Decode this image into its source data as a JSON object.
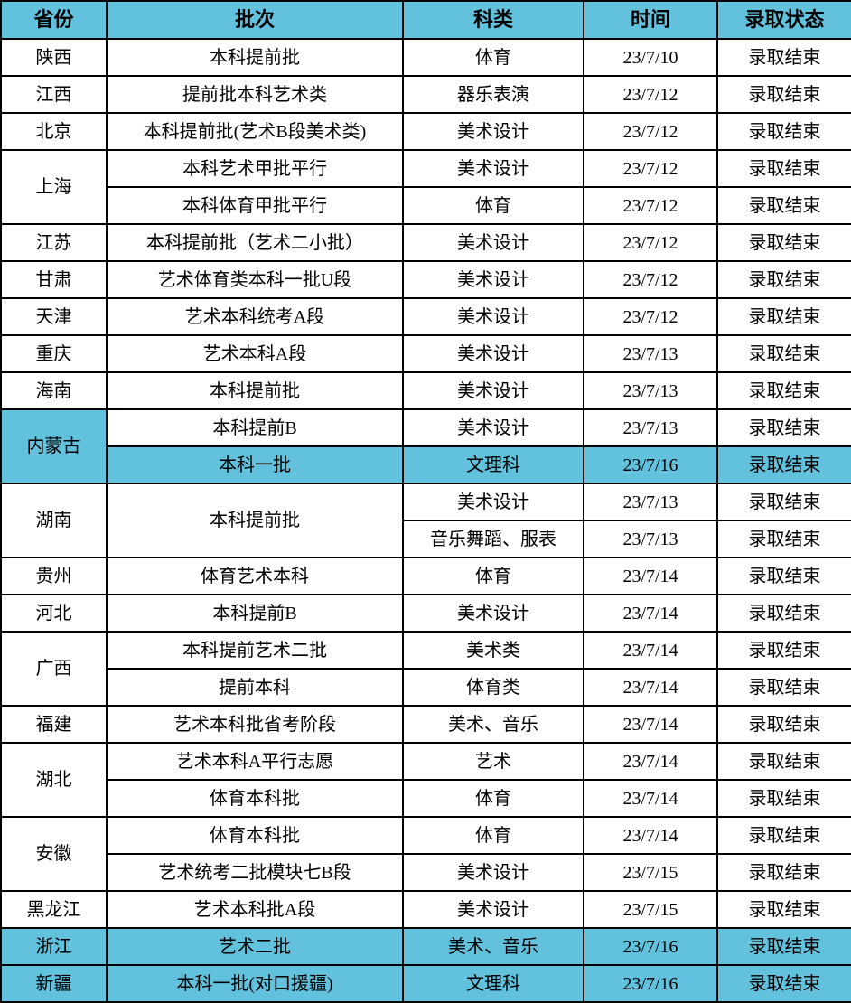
{
  "table": {
    "colors": {
      "header_bg": "#62c1dd",
      "highlight_bg": "#62c1dd",
      "border": "#000000",
      "text": "#000000",
      "row_bg": "#ffffff"
    },
    "columns": [
      {
        "key": "province",
        "label": "省份"
      },
      {
        "key": "batch",
        "label": "批次"
      },
      {
        "key": "category",
        "label": "科类"
      },
      {
        "key": "time",
        "label": "时间"
      },
      {
        "key": "status",
        "label": "录取状态"
      }
    ],
    "rows": [
      {
        "cells": [
          {
            "text": "陕西"
          },
          {
            "text": "本科提前批"
          },
          {
            "text": "体育"
          },
          {
            "text": "23/7/10"
          },
          {
            "text": "录取结束"
          }
        ]
      },
      {
        "cells": [
          {
            "text": "江西"
          },
          {
            "text": "提前批本科艺术类"
          },
          {
            "text": "器乐表演"
          },
          {
            "text": "23/7/12"
          },
          {
            "text": "录取结束"
          }
        ]
      },
      {
        "cells": [
          {
            "text": "北京"
          },
          {
            "text": "本科提前批(艺术B段美术类)"
          },
          {
            "text": "美术设计"
          },
          {
            "text": "23/7/12"
          },
          {
            "text": "录取结束"
          }
        ]
      },
      {
        "cells": [
          {
            "text": "上海",
            "rowspan": 2
          },
          {
            "text": "本科艺术甲批平行"
          },
          {
            "text": "美术设计"
          },
          {
            "text": "23/7/12"
          },
          {
            "text": "录取结束"
          }
        ]
      },
      {
        "cells": [
          {
            "text": "本科体育甲批平行"
          },
          {
            "text": "体育"
          },
          {
            "text": "23/7/12"
          },
          {
            "text": "录取结束"
          }
        ]
      },
      {
        "cells": [
          {
            "text": "江苏"
          },
          {
            "text": "本科提前批（艺术二小批）"
          },
          {
            "text": "美术设计"
          },
          {
            "text": "23/7/12"
          },
          {
            "text": "录取结束"
          }
        ]
      },
      {
        "cells": [
          {
            "text": "甘肃"
          },
          {
            "text": "艺术体育类本科一批U段"
          },
          {
            "text": "美术设计"
          },
          {
            "text": "23/7/12"
          },
          {
            "text": "录取结束"
          }
        ]
      },
      {
        "cells": [
          {
            "text": "天津"
          },
          {
            "text": "艺术本科统考A段"
          },
          {
            "text": "美术设计"
          },
          {
            "text": "23/7/12"
          },
          {
            "text": "录取结束"
          }
        ]
      },
      {
        "cells": [
          {
            "text": "重庆"
          },
          {
            "text": "艺术本科A段"
          },
          {
            "text": "美术设计"
          },
          {
            "text": "23/7/13"
          },
          {
            "text": "录取结束"
          }
        ]
      },
      {
        "cells": [
          {
            "text": "海南"
          },
          {
            "text": "本科提前批"
          },
          {
            "text": "美术设计"
          },
          {
            "text": "23/7/13"
          },
          {
            "text": "录取结束"
          }
        ]
      },
      {
        "cells": [
          {
            "text": "内蒙古",
            "rowspan": 2,
            "highlight": true
          },
          {
            "text": "本科提前B"
          },
          {
            "text": "美术设计"
          },
          {
            "text": "23/7/13"
          },
          {
            "text": "录取结束"
          }
        ]
      },
      {
        "highlight": true,
        "cells": [
          {
            "text": "本科一批"
          },
          {
            "text": "文理科"
          },
          {
            "text": "23/7/16"
          },
          {
            "text": "录取结束"
          }
        ]
      },
      {
        "cells": [
          {
            "text": "湖南",
            "rowspan": 2
          },
          {
            "text": "本科提前批",
            "rowspan": 2
          },
          {
            "text": "美术设计"
          },
          {
            "text": "23/7/13"
          },
          {
            "text": "录取结束"
          }
        ]
      },
      {
        "cells": [
          {
            "text": "音乐舞蹈、服表"
          },
          {
            "text": "23/7/13"
          },
          {
            "text": "录取结束"
          }
        ]
      },
      {
        "cells": [
          {
            "text": "贵州"
          },
          {
            "text": "体育艺术本科"
          },
          {
            "text": "体育"
          },
          {
            "text": "23/7/14"
          },
          {
            "text": "录取结束"
          }
        ]
      },
      {
        "cells": [
          {
            "text": "河北"
          },
          {
            "text": "本科提前B"
          },
          {
            "text": "美术设计"
          },
          {
            "text": "23/7/14"
          },
          {
            "text": "录取结束"
          }
        ]
      },
      {
        "cells": [
          {
            "text": "广西",
            "rowspan": 2
          },
          {
            "text": "本科提前艺术二批"
          },
          {
            "text": "美术类"
          },
          {
            "text": "23/7/14"
          },
          {
            "text": "录取结束"
          }
        ]
      },
      {
        "cells": [
          {
            "text": "提前本科"
          },
          {
            "text": "体育类"
          },
          {
            "text": "23/7/14"
          },
          {
            "text": "录取结束"
          }
        ]
      },
      {
        "cells": [
          {
            "text": "福建"
          },
          {
            "text": "艺术本科批省考阶段"
          },
          {
            "text": "美术、音乐"
          },
          {
            "text": "23/7/14"
          },
          {
            "text": "录取结束"
          }
        ]
      },
      {
        "cells": [
          {
            "text": "湖北",
            "rowspan": 2
          },
          {
            "text": "艺术本科A平行志愿"
          },
          {
            "text": "艺术"
          },
          {
            "text": "23/7/14"
          },
          {
            "text": "录取结束"
          }
        ]
      },
      {
        "cells": [
          {
            "text": "体育本科批"
          },
          {
            "text": "体育"
          },
          {
            "text": "23/7/14"
          },
          {
            "text": "录取结束"
          }
        ]
      },
      {
        "cells": [
          {
            "text": "安徽",
            "rowspan": 2
          },
          {
            "text": "体育本科批"
          },
          {
            "text": "体育"
          },
          {
            "text": "23/7/14"
          },
          {
            "text": "录取结束"
          }
        ]
      },
      {
        "cells": [
          {
            "text": "艺术统考二批模块七B段"
          },
          {
            "text": "美术设计"
          },
          {
            "text": "23/7/15"
          },
          {
            "text": "录取结束"
          }
        ]
      },
      {
        "cells": [
          {
            "text": "黑龙江"
          },
          {
            "text": "艺术本科批A段"
          },
          {
            "text": "美术设计"
          },
          {
            "text": "23/7/15"
          },
          {
            "text": "录取结束"
          }
        ]
      },
      {
        "highlight": true,
        "cells": [
          {
            "text": "浙江"
          },
          {
            "text": "艺术二批"
          },
          {
            "text": "美术、音乐"
          },
          {
            "text": "23/7/16"
          },
          {
            "text": "录取结束"
          }
        ]
      },
      {
        "highlight": true,
        "cells": [
          {
            "text": "新疆"
          },
          {
            "text": "本科一批(对口援疆)"
          },
          {
            "text": "文理科"
          },
          {
            "text": "23/7/16"
          },
          {
            "text": "录取结束"
          }
        ]
      }
    ]
  }
}
